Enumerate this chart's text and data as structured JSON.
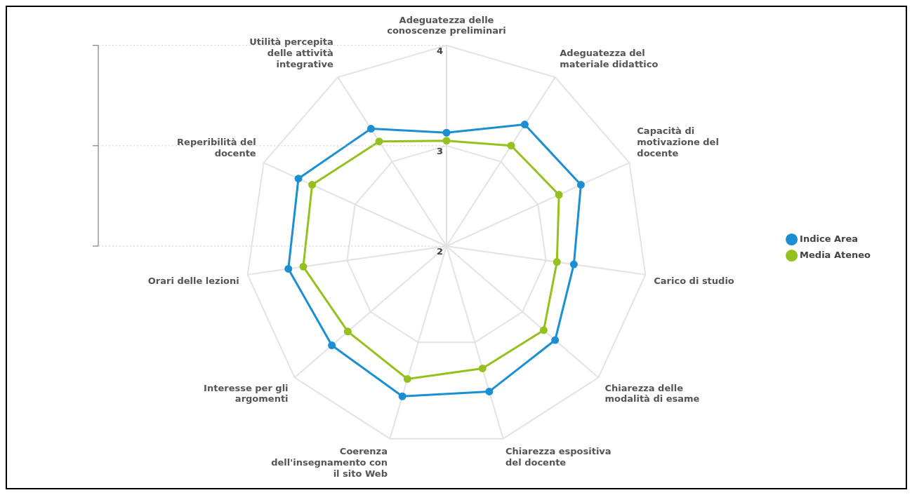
{
  "chart_data": {
    "type": "radar",
    "categories": [
      "Adeguatezza delle conoscenze preliminari",
      "Adeguatezza del materiale didattico",
      "Capacità di motivazione del docente",
      "Carico di studio",
      "Chiarezza delle modalità di esame",
      "Chiarezza espositiva del docente",
      "Coerenza dell'insegnamento con il sito Web",
      "Interesse per gli argomenti",
      "Orari delle lezioni",
      "Reperibilità del docente",
      "Utilità percepita delle attività integrative"
    ],
    "series": [
      {
        "name": "Indice Area",
        "color": "#1b8fd2",
        "values": [
          3.13,
          3.44,
          3.47,
          3.28,
          3.43,
          3.51,
          3.56,
          3.51,
          3.59,
          3.62,
          3.39
        ]
      },
      {
        "name": "Media Ateneo",
        "color": "#95c11f",
        "values": [
          3.05,
          3.19,
          3.23,
          3.11,
          3.28,
          3.27,
          3.38,
          3.3,
          3.44,
          3.47,
          3.24
        ]
      }
    ],
    "ylim": [
      2,
      4
    ],
    "yticks": [
      2,
      3,
      4
    ],
    "grid": true,
    "legend": "right",
    "marker": "circle",
    "line_style": "solid"
  }
}
